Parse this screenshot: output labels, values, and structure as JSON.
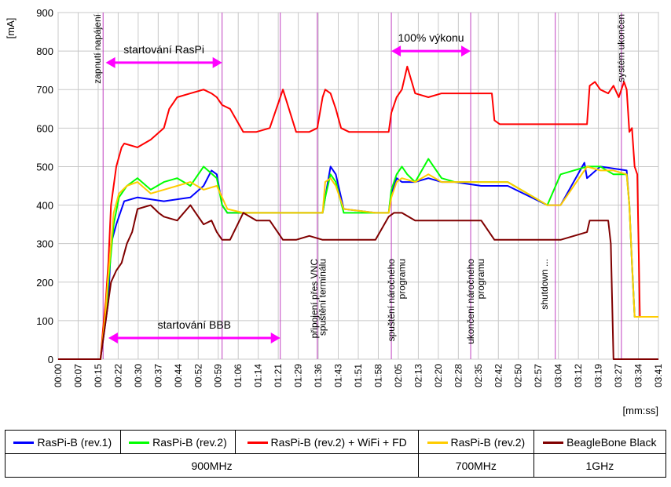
{
  "chart_data": {
    "type": "line",
    "ylabel": "[mA]",
    "xlabel": "[mm:ss]",
    "ylim": [
      0,
      900
    ],
    "yticks": [
      0,
      100,
      200,
      300,
      400,
      500,
      600,
      700,
      800,
      900
    ],
    "xlim_s": [
      0,
      227
    ],
    "xticks": [
      "00:00",
      "00:07",
      "00:15",
      "00:22",
      "00:30",
      "00:37",
      "00:44",
      "00:52",
      "00:59",
      "01:06",
      "01:14",
      "01:21",
      "01:29",
      "01:36",
      "01:43",
      "01:51",
      "01:58",
      "02:05",
      "02:13",
      "02:20",
      "02:28",
      "02:35",
      "02:42",
      "02:50",
      "02:57",
      "03:04",
      "03:12",
      "03:19",
      "03:27",
      "03:34",
      "03:41"
    ],
    "grid": true,
    "series": [
      {
        "name": "RasPi-B (rev.1)",
        "color": "#0000ff",
        "x": [
          0,
          16,
          17,
          18,
          19,
          20,
          22,
          25,
          30,
          40,
          50,
          55,
          58,
          60,
          62,
          64,
          80,
          100,
          101,
          103,
          105,
          108,
          120,
          125,
          126,
          128,
          130,
          135,
          140,
          145,
          150,
          160,
          170,
          185,
          190,
          199,
          200,
          205,
          215,
          216,
          217,
          218,
          220,
          227
        ],
        "y": [
          0,
          0,
          50,
          100,
          150,
          300,
          350,
          410,
          420,
          410,
          420,
          450,
          490,
          480,
          400,
          380,
          380,
          380,
          420,
          500,
          480,
          390,
          380,
          380,
          430,
          470,
          460,
          460,
          470,
          460,
          460,
          450,
          450,
          400,
          400,
          510,
          470,
          500,
          490,
          400,
          250,
          110,
          110,
          110
        ]
      },
      {
        "name": "RasPi-B (rev.2)",
        "color": "#00ff00",
        "x": [
          0,
          16,
          17,
          18,
          19,
          21,
          23,
          26,
          30,
          35,
          40,
          45,
          50,
          55,
          60,
          62,
          64,
          70,
          80,
          100,
          101,
          103,
          105,
          108,
          120,
          125,
          126,
          128,
          130,
          132,
          135,
          140,
          145,
          150,
          160,
          165,
          170,
          180,
          185,
          190,
          200,
          205,
          210,
          215,
          216,
          217,
          218,
          220,
          227
        ],
        "y": [
          0,
          0,
          60,
          120,
          200,
          350,
          420,
          450,
          470,
          440,
          460,
          470,
          450,
          500,
          470,
          400,
          380,
          380,
          380,
          380,
          420,
          480,
          460,
          380,
          380,
          380,
          440,
          480,
          500,
          480,
          460,
          520,
          470,
          460,
          460,
          460,
          460,
          420,
          400,
          480,
          500,
          500,
          480,
          480,
          400,
          250,
          110,
          110,
          110
        ]
      },
      {
        "name": "RasPi-B (rev.2) + WiFi + FD",
        "color": "#ff0000",
        "x": [
          0,
          16,
          17,
          18,
          19,
          20,
          22,
          24,
          25,
          30,
          35,
          40,
          42,
          45,
          50,
          55,
          58,
          60,
          62,
          65,
          70,
          75,
          80,
          85,
          90,
          95,
          98,
          100,
          101,
          103,
          105,
          107,
          110,
          120,
          125,
          126,
          128,
          130,
          132,
          135,
          140,
          145,
          150,
          160,
          164,
          165,
          167,
          170,
          175,
          180,
          190,
          200,
          201,
          203,
          205,
          208,
          210,
          212,
          214,
          215,
          216,
          217,
          218,
          219,
          220,
          227
        ],
        "y": [
          0,
          0,
          80,
          150,
          250,
          400,
          500,
          550,
          560,
          550,
          570,
          600,
          650,
          680,
          690,
          700,
          690,
          680,
          660,
          650,
          590,
          590,
          600,
          700,
          590,
          590,
          600,
          680,
          700,
          690,
          650,
          600,
          590,
          590,
          590,
          640,
          680,
          700,
          760,
          690,
          680,
          690,
          690,
          690,
          690,
          620,
          610,
          610,
          610,
          610,
          610,
          610,
          710,
          720,
          700,
          690,
          710,
          680,
          720,
          700,
          590,
          600,
          500,
          480,
          110,
          110
        ]
      },
      {
        "name": "RasPi-B (rev.2)",
        "color": "#ffcc00",
        "x": [
          0,
          16,
          17,
          18,
          19,
          21,
          23,
          26,
          30,
          35,
          40,
          45,
          50,
          55,
          60,
          62,
          64,
          70,
          80,
          90,
          100,
          101,
          103,
          105,
          108,
          120,
          125,
          126,
          128,
          130,
          135,
          140,
          145,
          150,
          160,
          170,
          180,
          185,
          190,
          200,
          205,
          210,
          215,
          216,
          217,
          218,
          220,
          227
        ],
        "y": [
          0,
          0,
          60,
          130,
          220,
          380,
          430,
          450,
          460,
          430,
          440,
          450,
          460,
          440,
          450,
          420,
          390,
          380,
          380,
          380,
          380,
          460,
          470,
          450,
          390,
          380,
          380,
          420,
          460,
          470,
          460,
          480,
          460,
          460,
          460,
          460,
          420,
          400,
          400,
          500,
          490,
          490,
          480,
          400,
          250,
          110,
          110,
          110
        ]
      },
      {
        "name": "BeagleBone Black",
        "color": "#800000",
        "x": [
          0,
          16,
          17,
          18,
          19,
          20,
          22,
          24,
          26,
          28,
          30,
          35,
          38,
          40,
          45,
          50,
          52,
          55,
          58,
          60,
          62,
          65,
          70,
          75,
          80,
          85,
          90,
          95,
          100,
          110,
          120,
          125,
          127,
          130,
          135,
          140,
          150,
          160,
          165,
          170,
          175,
          180,
          190,
          200,
          201,
          205,
          208,
          209,
          210,
          211,
          212,
          227
        ],
        "y": [
          0,
          0,
          50,
          100,
          150,
          200,
          230,
          250,
          300,
          330,
          390,
          400,
          380,
          370,
          360,
          400,
          380,
          350,
          360,
          330,
          310,
          310,
          380,
          360,
          360,
          310,
          310,
          320,
          310,
          310,
          310,
          370,
          380,
          380,
          360,
          360,
          360,
          360,
          310,
          310,
          310,
          310,
          310,
          330,
          360,
          360,
          360,
          300,
          0,
          0,
          0,
          0
        ]
      }
    ],
    "annotations": {
      "v_labels": [
        {
          "t": 17,
          "text": "zapnutí napájení",
          "pos": "top"
        },
        {
          "t": 99,
          "text": "připojení přes VNC",
          "pos": "bottom"
        },
        {
          "t": 102,
          "text": "spuštění terminálu",
          "pos": "bottom"
        },
        {
          "t": 128,
          "text": "spuštění náročného",
          "pos": "bottom"
        },
        {
          "t": 132,
          "text": "programu",
          "pos": "bottom"
        },
        {
          "t": 158,
          "text": "ukončení náročného",
          "pos": "bottom"
        },
        {
          "t": 162,
          "text": "programu",
          "pos": "bottom"
        },
        {
          "t": 186,
          "text": "shutdown ...",
          "pos": "bottom"
        },
        {
          "t": 215,
          "text": "systém ukončen",
          "pos": "top"
        }
      ],
      "v_lines": [
        17,
        62,
        84,
        98,
        126,
        156,
        188,
        213
      ],
      "arrows": [
        {
          "text": "startování RasPi",
          "t1": 18,
          "t2": 62,
          "y": 770
        },
        {
          "text": "startování BBB",
          "t1": 19,
          "t2": 84,
          "y": 55
        },
        {
          "text": "100% výkonu",
          "t1": 126,
          "t2": 156,
          "y": 800
        }
      ]
    }
  },
  "legend": {
    "rows": [
      [
        "RasPi-B (rev.1)",
        "RasPi-B (rev.2)",
        "RasPi-B (rev.2) + WiFi + FD",
        "RasPi-B (rev.2)",
        "BeagleBone Black"
      ],
      [
        "900MHz",
        "700MHz",
        "1GHz"
      ]
    ],
    "colors": [
      "#0000ff",
      "#00ff00",
      "#ff0000",
      "#ffcc00",
      "#800000"
    ]
  }
}
